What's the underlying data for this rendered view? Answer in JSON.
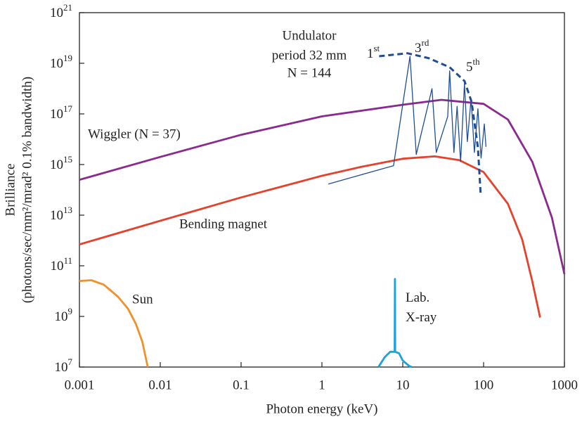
{
  "chart_data": {
    "type": "line",
    "x_label": "Photon energy (keV)",
    "y_label": [
      "Brilliance",
      "(photons/sec/mm²/mrad² 0.1% bandwidth)"
    ],
    "log_x": true,
    "log_y": true,
    "xlim": [
      0.001,
      1000
    ],
    "xticks": [
      0.001,
      0.01,
      0.1,
      1,
      10,
      100,
      1000
    ],
    "ylim": [
      10000000.0,
      1e+21
    ],
    "yticks": [
      {
        "value": 10000000.0,
        "label": "10⁷"
      },
      {
        "value": 1000000000.0,
        "label": "10⁹"
      },
      {
        "value": 100000000000.0,
        "label": "10¹¹"
      },
      {
        "value": 10000000000000.0,
        "label": "10¹³"
      },
      {
        "value": 1000000000000000.0,
        "label": "10¹⁵"
      },
      {
        "value": 1e+17,
        "label": "10¹⁷"
      },
      {
        "value": 1e+19,
        "label": "10¹⁹"
      },
      {
        "value": 1e+21,
        "label": "10²¹"
      }
    ],
    "series": [
      {
        "name": "Wiggler (N = 37)",
        "color": "#8a2a8e",
        "x": [
          0.001,
          0.01,
          0.1,
          1,
          10,
          30,
          100,
          200,
          400,
          700,
          1000
        ],
        "values": [
          250000000000000.0,
          2000000000000000.0,
          1.5e+16,
          8e+16,
          2.3e+17,
          3.6e+17,
          2.5e+17,
          6e+16,
          1300000000000000.0,
          8000000000000.0,
          47000000000.0
        ]
      },
      {
        "name": "Bending magnet",
        "color": "#e5422e",
        "x": [
          0.001,
          0.01,
          0.1,
          1,
          3,
          10,
          25,
          50,
          100,
          200,
          300,
          400,
          500
        ],
        "values": [
          700000000000.0,
          6000000000000.0,
          50000000000000.0,
          360000000000000.0,
          800000000000000.0,
          1700000000000000.0,
          2100000000000000.0,
          1500000000000000.0,
          500000000000000.0,
          28000000000000.0,
          1100000000000.0,
          25000000000.0,
          900000000.0
        ]
      },
      {
        "name": "Sun",
        "color": "#f0922b",
        "x": [
          0.001,
          0.0014,
          0.002,
          0.003,
          0.004,
          0.005,
          0.006,
          0.007
        ],
        "values": [
          25000000000.0,
          27000000000.0,
          18000000000.0,
          6000000000.0,
          2000000000.0,
          500000000.0,
          100000000.0,
          10000000.0
        ]
      },
      {
        "name": "Lab. X-ray",
        "color": "#1ba1dc",
        "x": [
          5,
          6,
          7,
          7.9,
          7.95,
          8,
          8.05,
          9,
          10,
          12,
          13
        ],
        "values": [
          10000000.0,
          25000000.0,
          40000000.0,
          40000000.0,
          40000000.0,
          30000000000.0,
          40000000.0,
          35000000.0,
          18000000.0,
          11000000.0,
          10000000.0
        ]
      },
      {
        "name": "Undulator",
        "color": "#1f4e96",
        "width": 1.3,
        "x": [
          1.2,
          7.7,
          12.3,
          14.7,
          23,
          26,
          36,
          38,
          43,
          47,
          52,
          58,
          63,
          70,
          77,
          85,
          93,
          102,
          107
        ],
        "values": [
          170000000000000.0,
          900000000000000.0,
          1.9e+19,
          2500000000000000.0,
          1e+18,
          3000000000000000.0,
          8e+16,
          5e+18,
          3000000000000000.0,
          2e+17,
          1300000000000000.0,
          1.6e+18,
          8000000000000000.0,
          4e+17,
          3000000000000000.0,
          1.6e+17,
          1800000000000000.0,
          4e+16,
          5000000000000000.0
        ]
      },
      {
        "color": "#1f4e96",
        "dashed": true,
        "x": [
          5.1,
          11.4,
          20.9,
          38,
          58,
          71,
          85,
          92
        ],
        "values": [
          1.9e+19,
          2.5e+19,
          1.6e+19,
          7e+18,
          2e+18,
          3e+17,
          4700000000000000.0,
          70000000000000.0
        ]
      }
    ],
    "annotations": [
      "period 32 mm",
      "N = 144",
      "1st",
      "3rd",
      "5th"
    ]
  }
}
